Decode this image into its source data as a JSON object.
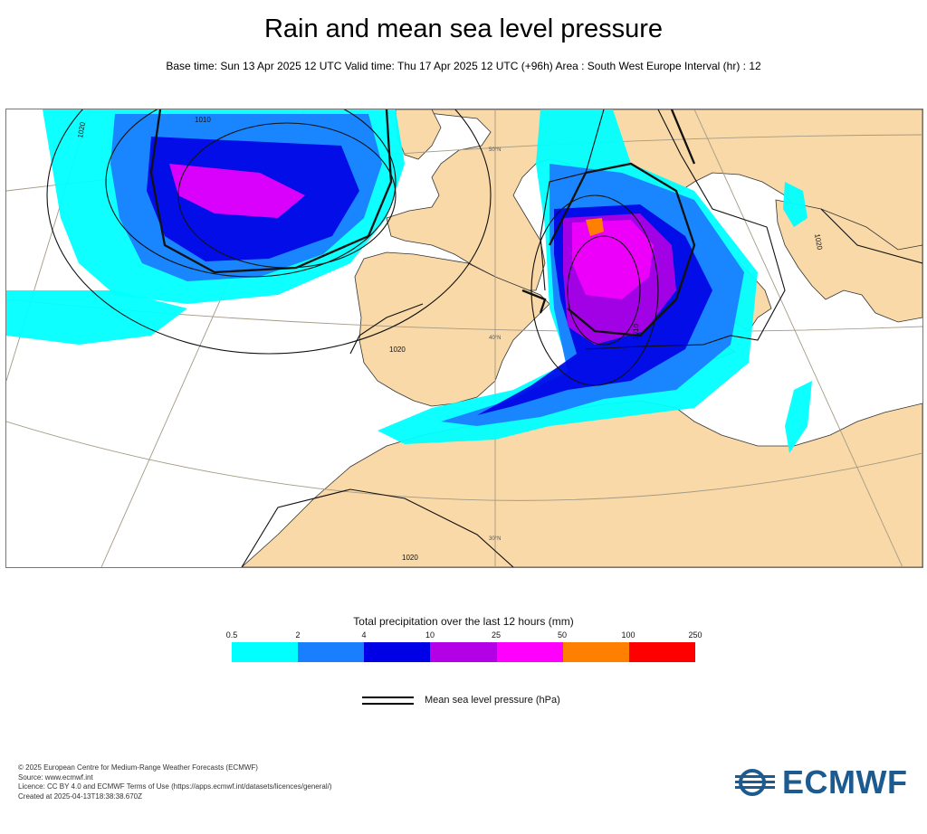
{
  "header": {
    "title": "Rain and mean sea level pressure",
    "subtitle": "Base time: Sun 13 Apr 2025 12 UTC Valid time: Thu 17 Apr 2025 12 UTC (+96h) Area : South West Europe Interval (hr) : 12"
  },
  "map": {
    "contour_labels": [
      "1010",
      "1020",
      "1020",
      "1010",
      "1020",
      "1020"
    ],
    "latitude_labels": [
      "50°N",
      "40°N",
      "30°N"
    ],
    "colors": {
      "land": "#f9d9a8",
      "sea": "#ffffff",
      "coast": "#333333"
    }
  },
  "legend": {
    "title": "Total precipitation over the last 12 hours (mm)",
    "ticks": [
      "0.5",
      "2",
      "4",
      "10",
      "25",
      "50",
      "100",
      "250"
    ],
    "colors": [
      "#00ffff",
      "#1a7fff",
      "#0000e6",
      "#b400e6",
      "#ff00ff",
      "#ff8000",
      "#ff0000"
    ],
    "mslp_label": "Mean sea level pressure (hPa)"
  },
  "credits": {
    "line1": "© 2025 European Centre for Medium-Range Weather Forecasts (ECMWF)",
    "line2": "Source: www.ecmwf.int",
    "line3": "Licence: CC BY 4.0 and ECMWF Terms of Use (https://apps.ecmwf.int/datasets/licences/general/)",
    "line4": "Created at 2025-04-13T18:38:38.670Z"
  },
  "logo": {
    "text": "ECMWF",
    "color": "#1d5a8f"
  }
}
